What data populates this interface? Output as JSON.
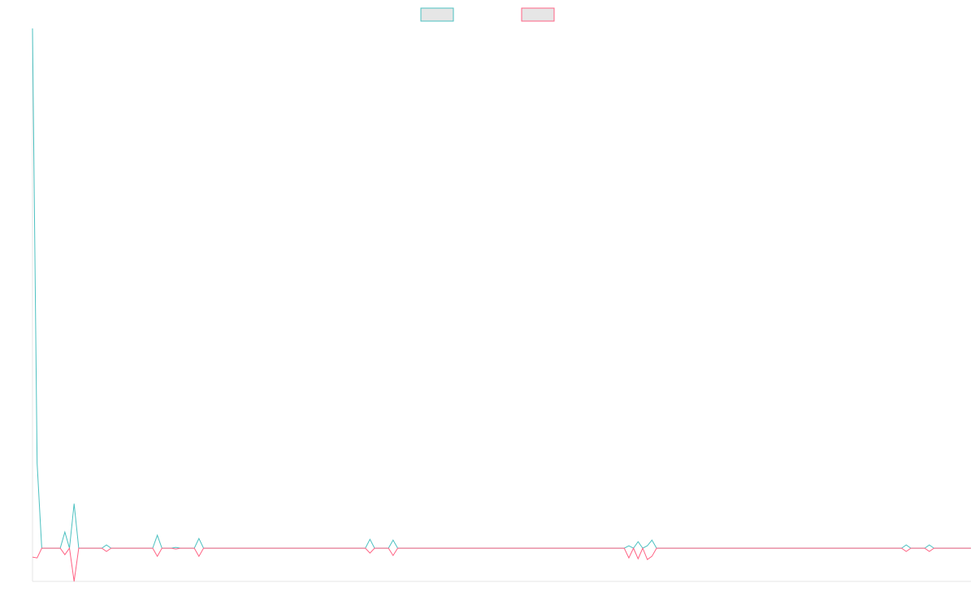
{
  "chart_data": {
    "type": "line",
    "x": [
      0,
      1,
      2,
      6,
      7,
      8,
      9,
      10,
      15,
      16,
      17,
      26,
      27,
      28,
      30,
      31,
      32,
      35,
      36,
      37,
      72,
      73,
      74,
      77,
      78,
      79,
      128,
      129,
      130,
      131,
      132,
      133,
      134,
      135,
      188,
      189,
      190,
      193,
      194,
      195,
      203
    ],
    "series": [
      {
        "color": "#4bc0c0",
        "values": [
          642,
          105,
          0,
          0,
          20,
          0,
          55,
          0,
          0,
          4,
          0,
          0,
          16,
          0,
          0,
          1,
          0,
          0,
          12,
          0,
          0,
          11,
          0,
          0,
          10,
          0,
          0,
          3,
          0,
          8,
          0,
          3,
          10,
          0,
          0,
          4,
          0,
          0,
          4,
          0,
          0
        ]
      },
      {
        "color": "#ff6384",
        "values": [
          -11,
          -12,
          0,
          0,
          -8,
          0,
          -41,
          0,
          0,
          -4,
          0,
          0,
          -10,
          0,
          0,
          -1,
          0,
          0,
          -10,
          0,
          0,
          -6,
          0,
          0,
          -9,
          0,
          0,
          -12,
          0,
          -13,
          0,
          -14,
          -10,
          0,
          0,
          -4,
          0,
          0,
          -4,
          0,
          0
        ]
      }
    ],
    "xlim": [
      0,
      203
    ],
    "ylim": [
      -41,
      642
    ],
    "grid": false
  }
}
